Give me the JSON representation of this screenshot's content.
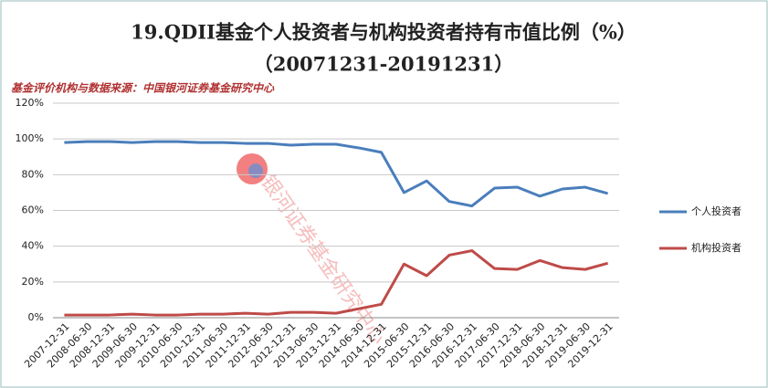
{
  "chart_data": {
    "type": "line",
    "title": "19.QDII基金个人投资者与机构投资者持有市值比例（%）",
    "subtitle": "（20071231-20191231）",
    "source": "基金评价机构与数据来源：中国银河证券基金研究中心",
    "watermark": "银河证券基金研究中心",
    "categories": [
      "2007-12-31",
      "2008-06-30",
      "2008-12-31",
      "2009-06-30",
      "2009-12-31",
      "2010-06-30",
      "2010-12-31",
      "2011-06-30",
      "2011-12-31",
      "2012-06-30",
      "2012-12-31",
      "2013-06-30",
      "2013-12-31",
      "2014-06-30",
      "2014-12-31",
      "2015-06-30",
      "2015-12-31",
      "2016-06-30",
      "2016-12-31",
      "2017-06-30",
      "2017-12-31",
      "2018-06-30",
      "2018-12-31",
      "2019-06-30",
      "2019-12-31"
    ],
    "series": [
      {
        "name": "个人投资者",
        "color": "#4a7ebb",
        "values": [
          98,
          98.5,
          98.5,
          98,
          98.5,
          98.5,
          98,
          98,
          97.5,
          97.5,
          96.5,
          97,
          97,
          95,
          92.5,
          70,
          76.5,
          65,
          62.5,
          72.5,
          73,
          68,
          72,
          73,
          69.5
        ]
      },
      {
        "name": "机构投资者",
        "color": "#be4b48",
        "values": [
          1.5,
          1.5,
          1.5,
          2,
          1.5,
          1.5,
          2,
          2,
          2.5,
          2,
          3,
          3,
          2.5,
          5,
          7.5,
          30,
          23.5,
          35,
          37.5,
          27.5,
          27,
          32,
          28,
          27,
          30.5
        ]
      }
    ],
    "ylim": [
      0,
      120
    ],
    "yticks": [
      {
        "value": 0,
        "label": "0%"
      },
      {
        "value": 20,
        "label": "20%"
      },
      {
        "value": 40,
        "label": "40%"
      },
      {
        "value": 60,
        "label": "60%"
      },
      {
        "value": 80,
        "label": "80%"
      },
      {
        "value": 100,
        "label": "100%"
      },
      {
        "value": 120,
        "label": "120%"
      }
    ],
    "grid": true,
    "legend": "right"
  }
}
